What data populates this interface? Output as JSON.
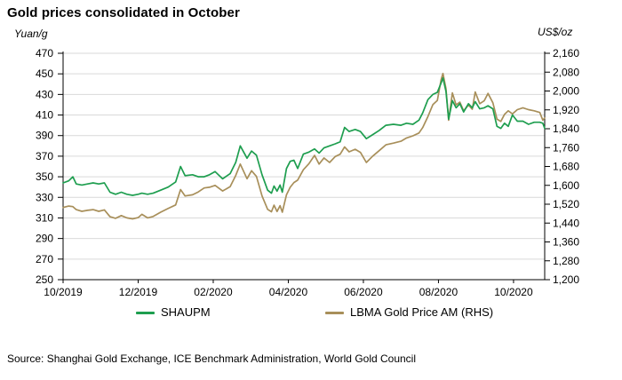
{
  "title": "Gold prices consolidated in October",
  "left_axis": {
    "label": "Yuan/g",
    "ticks": [
      470,
      450,
      430,
      410,
      390,
      370,
      350,
      330,
      310,
      290,
      270,
      250
    ]
  },
  "right_axis": {
    "label": "US$/oz",
    "tick_labels": [
      "2,160",
      "2,080",
      "2,000",
      "1,920",
      "1,840",
      "1,760",
      "1,680",
      "1,600",
      "1,520",
      "1,440",
      "1,360",
      "1,280",
      "1,200"
    ]
  },
  "x_axis": {
    "ticks": [
      {
        "label": "10/2019",
        "month": 0
      },
      {
        "label": "12/2019",
        "month": 2
      },
      {
        "label": "02/2020",
        "month": 4
      },
      {
        "label": "04/2020",
        "month": 6
      },
      {
        "label": "06/2020",
        "month": 8
      },
      {
        "label": "08/2020",
        "month": 10
      },
      {
        "label": "10/2020",
        "month": 12
      }
    ]
  },
  "legend": [
    {
      "label": "SHAUPM",
      "color": "#1E9E4F"
    },
    {
      "label": "LBMA Gold Price AM (RHS)",
      "color": "#A88F5A"
    }
  ],
  "source": "Source: Shanghai Gold Exchange, ICE Benchmark Administration, World Gold Council",
  "colors": {
    "shaupm_line": "#1E9E4F",
    "lbma_line": "#A88F5A",
    "gridline": "#D9D9D9",
    "axis": "#000000"
  },
  "chart_data": {
    "type": "line",
    "title": "Gold prices consolidated in October",
    "x_unit": "months since 2019-10-01",
    "xlim": [
      0,
      12.83
    ],
    "left_ylim": [
      250,
      470
    ],
    "right_ylim": [
      1200,
      2160
    ],
    "grid": "horizontal only, aligned to left-axis ticks, light gray",
    "legend_position": "bottom",
    "x": [
      0.0,
      0.15,
      0.26,
      0.35,
      0.5,
      0.65,
      0.8,
      0.95,
      1.1,
      1.25,
      1.4,
      1.55,
      1.7,
      1.85,
      2.0,
      2.1,
      2.25,
      2.4,
      2.6,
      2.8,
      3.0,
      3.13,
      3.25,
      3.45,
      3.6,
      3.76,
      3.9,
      4.05,
      4.25,
      4.45,
      4.6,
      4.72,
      4.9,
      5.02,
      5.15,
      5.3,
      5.45,
      5.55,
      5.62,
      5.7,
      5.78,
      5.84,
      5.95,
      6.05,
      6.15,
      6.25,
      6.4,
      6.55,
      6.7,
      6.82,
      6.95,
      7.1,
      7.25,
      7.38,
      7.5,
      7.62,
      7.78,
      7.92,
      8.08,
      8.25,
      8.42,
      8.6,
      8.8,
      9.0,
      9.15,
      9.32,
      9.48,
      9.58,
      9.72,
      9.85,
      9.97,
      10.07,
      10.12,
      10.2,
      10.27,
      10.37,
      10.47,
      10.57,
      10.67,
      10.8,
      10.9,
      10.98,
      11.1,
      11.22,
      11.32,
      11.45,
      11.56,
      11.66,
      11.76,
      11.86,
      11.97,
      12.1,
      12.25,
      12.4,
      12.55,
      12.7,
      12.78,
      12.83
    ],
    "series": [
      {
        "name": "SHAUPM",
        "axis": "left",
        "unit": "Yuan/g",
        "color": "#1E9E4F",
        "values": [
          344,
          346,
          350,
          343,
          342,
          343,
          344,
          343,
          344,
          335,
          333,
          335,
          333,
          332,
          333,
          334,
          333,
          334,
          337,
          340,
          345,
          360,
          351,
          352,
          350,
          350,
          352,
          355,
          348,
          353,
          364,
          380,
          368,
          375,
          371,
          352,
          337,
          334,
          341,
          336,
          342,
          335,
          358,
          365,
          366,
          358,
          372,
          374,
          377,
          373,
          378,
          380,
          382,
          384,
          398,
          394,
          396,
          394,
          387,
          391,
          395,
          400,
          401,
          400,
          402,
          401,
          405,
          412,
          425,
          430,
          432,
          441,
          446,
          433,
          406,
          424,
          417,
          421,
          413,
          421,
          417,
          423,
          416,
          417,
          419,
          416,
          399,
          397,
          402,
          399,
          410,
          404,
          404,
          401,
          403,
          403,
          402,
          397
        ]
      },
      {
        "name": "LBMA Gold Price AM (RHS)",
        "axis": "right",
        "unit": "US$/oz",
        "color": "#A88F5A",
        "values": [
          1506,
          1512,
          1510,
          1497,
          1490,
          1494,
          1497,
          1490,
          1496,
          1467,
          1460,
          1472,
          1462,
          1458,
          1463,
          1477,
          1462,
          1468,
          1486,
          1502,
          1517,
          1582,
          1555,
          1560,
          1572,
          1589,
          1592,
          1600,
          1576,
          1594,
          1642,
          1690,
          1628,
          1662,
          1638,
          1555,
          1498,
          1488,
          1516,
          1489,
          1514,
          1486,
          1560,
          1592,
          1612,
          1622,
          1666,
          1692,
          1727,
          1690,
          1716,
          1697,
          1722,
          1732,
          1763,
          1742,
          1753,
          1740,
          1697,
          1724,
          1747,
          1772,
          1779,
          1787,
          1801,
          1810,
          1822,
          1845,
          1892,
          1942,
          1960,
          2048,
          2074,
          2010,
          1876,
          1992,
          1941,
          1953,
          1916,
          1941,
          1923,
          1996,
          1946,
          1959,
          1990,
          1950,
          1881,
          1871,
          1901,
          1916,
          1903,
          1921,
          1929,
          1921,
          1916,
          1909,
          1876,
          1886
        ]
      }
    ]
  }
}
